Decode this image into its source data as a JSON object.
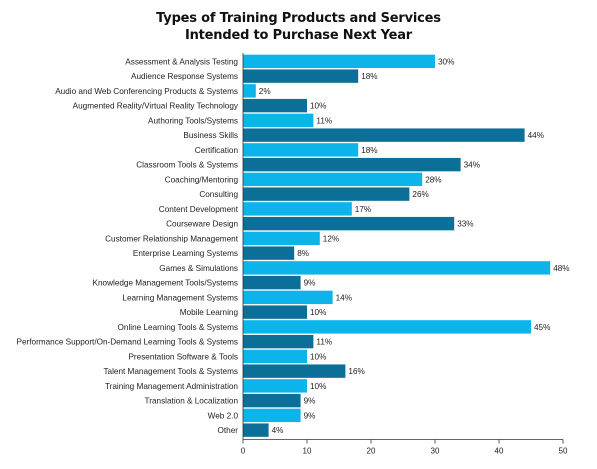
{
  "chart_data": {
    "type": "bar",
    "orientation": "horizontal",
    "title_lines": [
      "Types of Training Products and Services",
      "Intended to Purchase Next Year"
    ],
    "categories": [
      "Assessment & Analysis Testing",
      "Audience Response Systems",
      "Audio and Web Conferencing Products & Systems",
      "Augmented Reality/Virtual Reality Technology",
      "Authoring Tools/Systems",
      "Business Skills",
      "Certification",
      "Classroom Tools & Systems",
      "Coaching/Mentoring",
      "Consulting",
      "Content Development",
      "Courseware Design",
      "Customer Relationship Management",
      "Enterprise Learning Systems",
      "Games & Simulations",
      "Knowledge Management Tools/Systems",
      "Learning Management Systems",
      "Mobile Learning",
      "Online Learning Tools & Systems",
      "Performance Support/On-Demand Learning Tools & Systems",
      "Presentation Software & Tools",
      "Talent Management Tools & Systems",
      "Training Management Administration",
      "Translation & Localization",
      "Web 2.0",
      "Other"
    ],
    "values": [
      30,
      18,
      2,
      10,
      11,
      44,
      18,
      34,
      28,
      26,
      17,
      33,
      12,
      8,
      48,
      9,
      14,
      10,
      45,
      11,
      10,
      16,
      10,
      9,
      9,
      4
    ],
    "value_labels": [
      "30%",
      "18%",
      "2%",
      "10%",
      "11%",
      "44%",
      "18%",
      "34%",
      "28%",
      "26%",
      "17%",
      "33%",
      "12%",
      "8%",
      "48%",
      "9%",
      "14%",
      "10%",
      "45%",
      "11%",
      "10%",
      "16%",
      "10%",
      "9%",
      "9%",
      "4%"
    ],
    "xlim": [
      0,
      50
    ],
    "xticks": [
      "0",
      "10",
      "20",
      "30",
      "40",
      "50"
    ],
    "grid": false,
    "legend": "none",
    "colors": {
      "light": "#0db4ea",
      "dark": "#0b6f98"
    },
    "color_pattern": "alternating light/dark starting with light"
  }
}
